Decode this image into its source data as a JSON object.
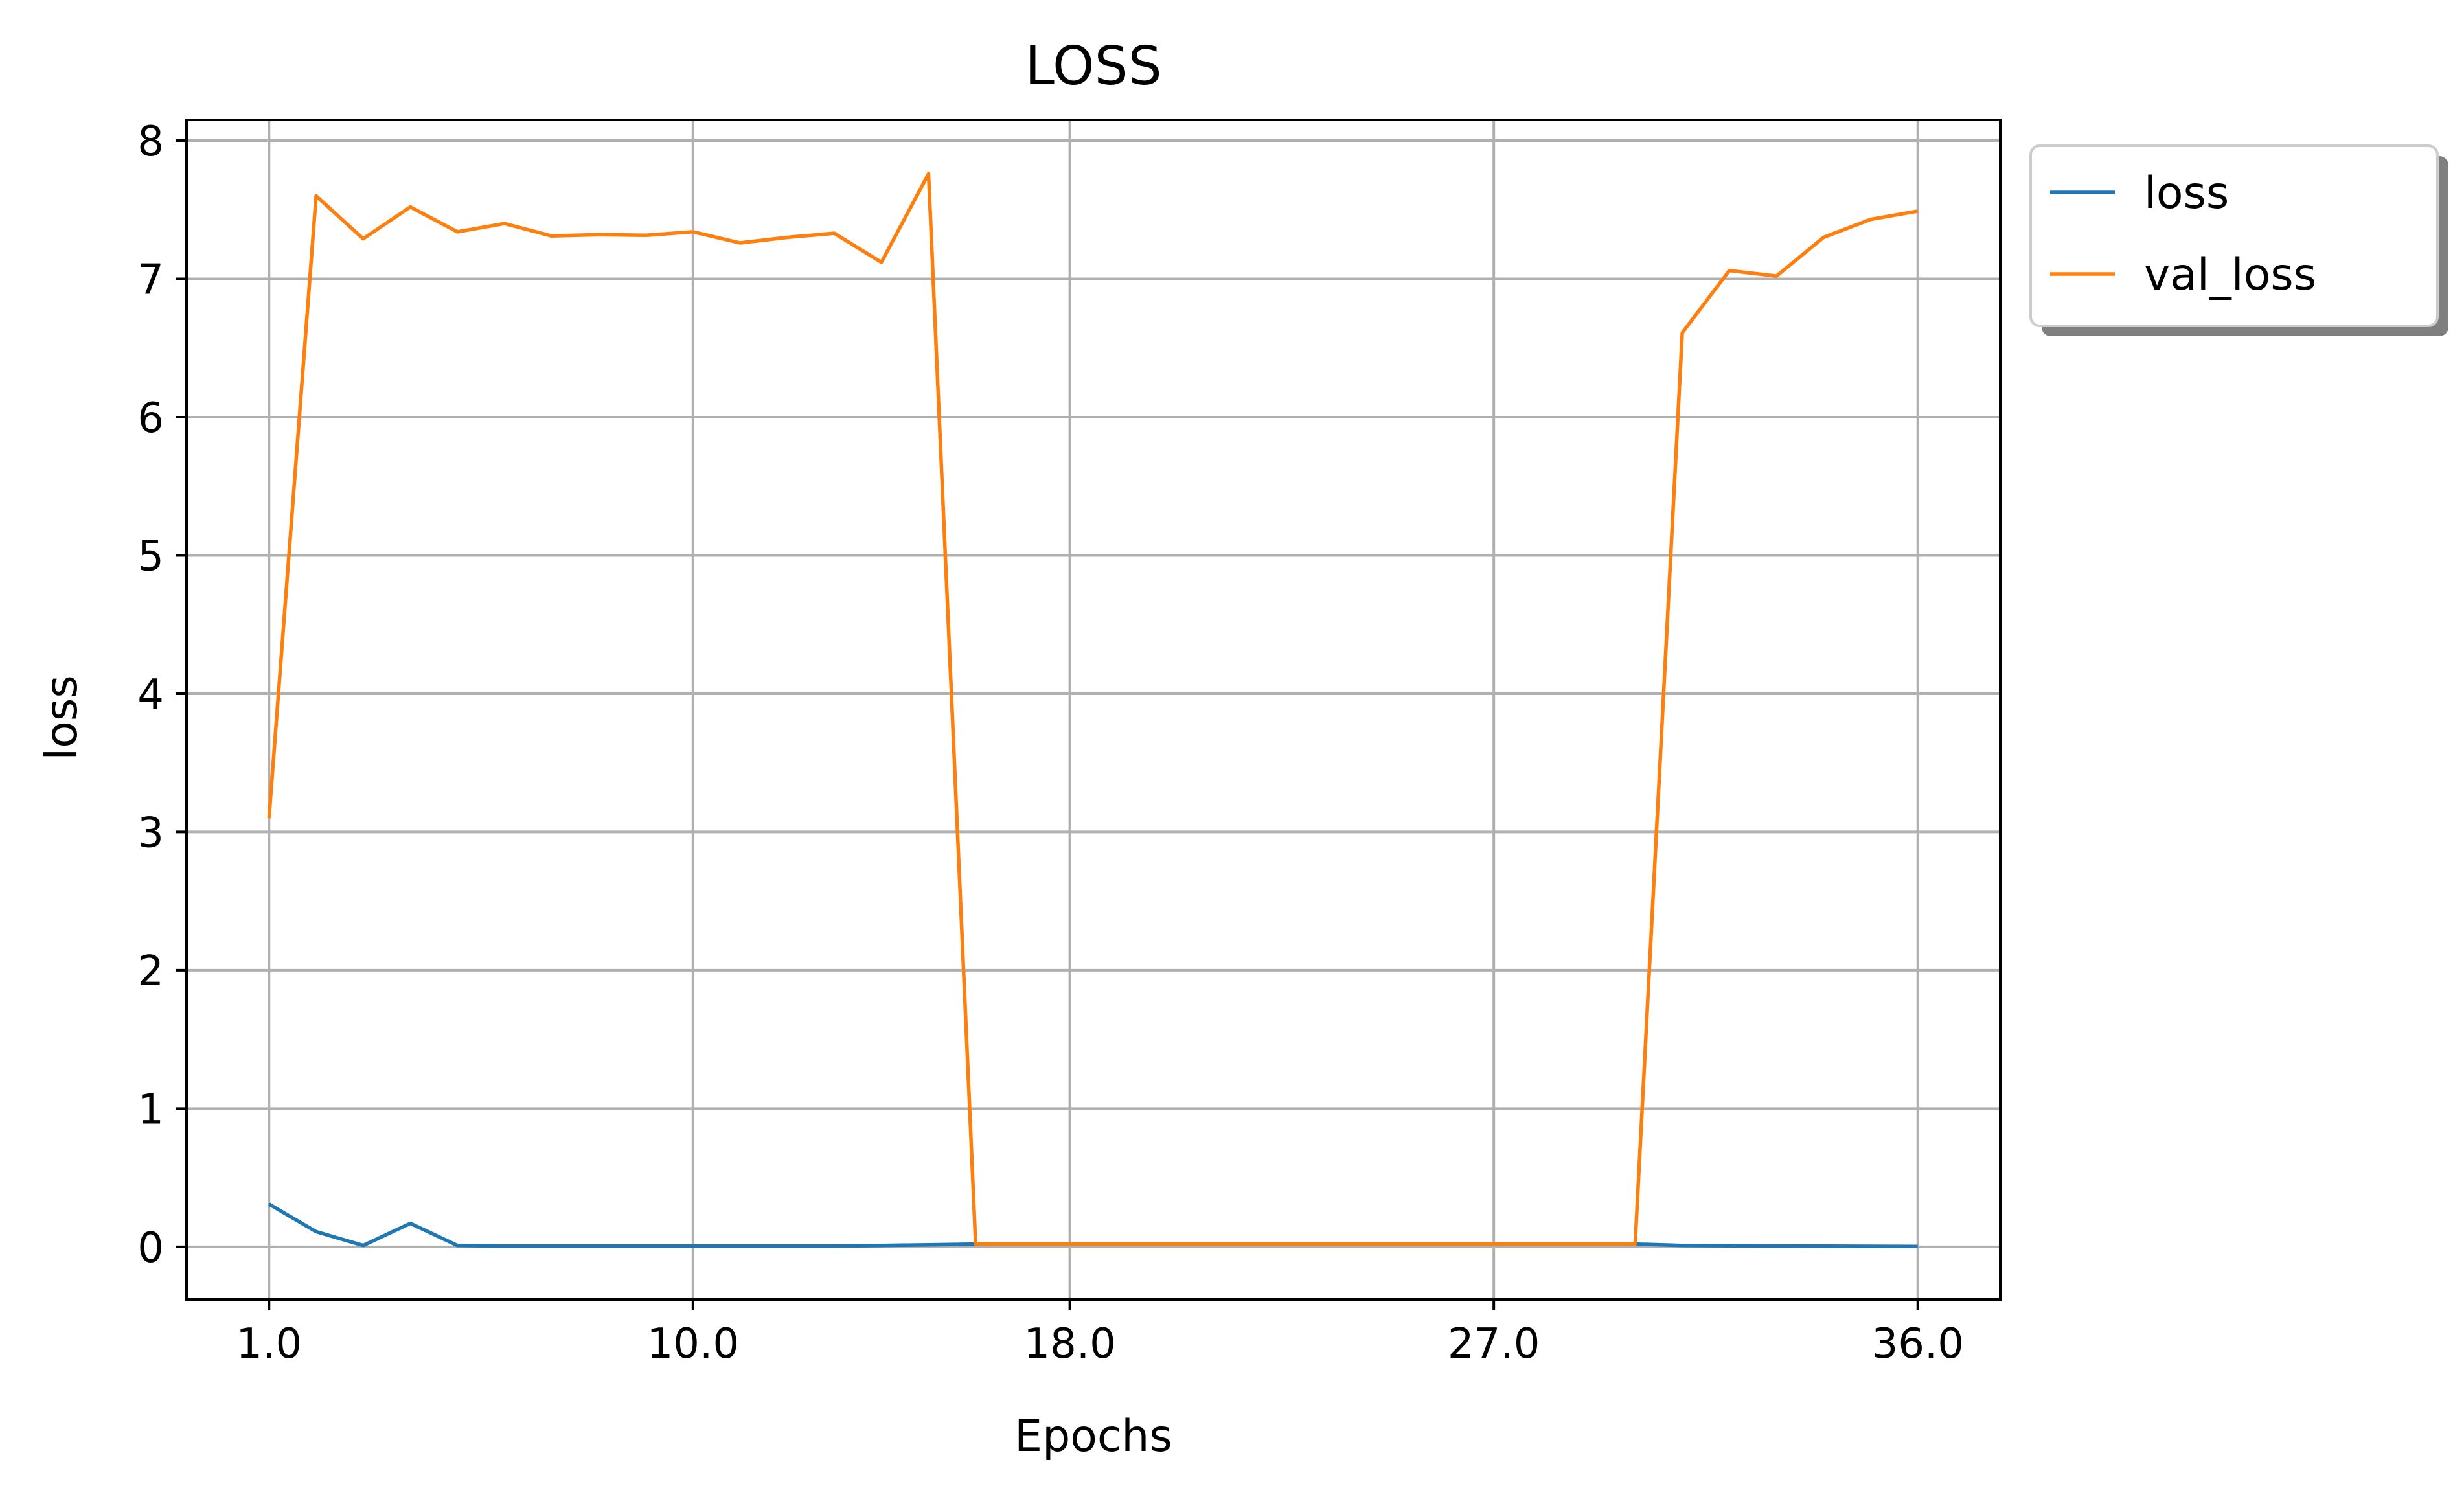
{
  "chart_data": {
    "type": "line",
    "title": "LOSS",
    "xlabel": "Epochs",
    "ylabel": "loss",
    "x": [
      1,
      2,
      3,
      4,
      5,
      6,
      7,
      8,
      9,
      10,
      11,
      12,
      13,
      14,
      15,
      16,
      17,
      18,
      19,
      20,
      21,
      22,
      23,
      24,
      25,
      26,
      27,
      28,
      29,
      30,
      31,
      32,
      33,
      34,
      35,
      36
    ],
    "x_ticks": [
      1,
      10,
      18,
      27,
      36
    ],
    "x_tick_labels": [
      "1.0",
      "10.0",
      "18.0",
      "27.0",
      "36.0"
    ],
    "y_ticks": [
      0,
      1,
      2,
      3,
      4,
      5,
      6,
      7,
      8
    ],
    "y_tick_labels": [
      "0",
      "1",
      "2",
      "3",
      "4",
      "5",
      "6",
      "7",
      "8"
    ],
    "xlim": [
      -0.75,
      37.75
    ],
    "ylim": [
      -0.38,
      8.15
    ],
    "grid": true,
    "legend_position": "outside-top-right",
    "series": [
      {
        "name": "loss",
        "color": "#1f77b4",
        "values": [
          0.31,
          0.11,
          0.01,
          0.17,
          0.01,
          0.005,
          0.005,
          0.005,
          0.005,
          0.005,
          0.005,
          0.005,
          0.005,
          0.01,
          0.015,
          0.02,
          0.02,
          0.02,
          0.02,
          0.02,
          0.02,
          0.02,
          0.02,
          0.02,
          0.02,
          0.02,
          0.02,
          0.02,
          0.02,
          0.02,
          0.01,
          0.008,
          0.006,
          0.005,
          0.004,
          0.003
        ]
      },
      {
        "name": "val_loss",
        "color": "#ff7f0e",
        "values": [
          3.1,
          7.6,
          7.29,
          7.52,
          7.34,
          7.4,
          7.31,
          7.32,
          7.315,
          7.34,
          7.26,
          7.3,
          7.33,
          7.12,
          7.76,
          0.02,
          0.02,
          0.02,
          0.02,
          0.02,
          0.02,
          0.02,
          0.02,
          0.02,
          0.02,
          0.02,
          0.02,
          0.02,
          0.02,
          0.02,
          6.61,
          7.06,
          7.02,
          7.3,
          7.43,
          7.49
        ]
      }
    ]
  }
}
